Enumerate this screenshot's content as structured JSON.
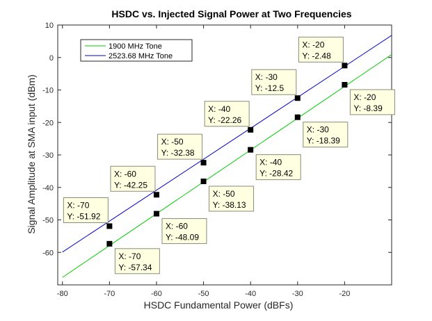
{
  "chart_data": {
    "type": "line",
    "title": "HSDC vs. Injected Signal Power at Two Frequencies",
    "xlabel": "HSDC Fundamental Power (dBFs)",
    "ylabel": "Signal Amplitude at SMA input (dBm)",
    "xlim": [
      -81,
      -10
    ],
    "ylim": [
      -70,
      10
    ],
    "xticks": [
      -80,
      -70,
      -60,
      -50,
      -40,
      -30,
      -20
    ],
    "yticks": [
      10,
      0,
      -10,
      -20,
      -30,
      -40,
      -50,
      -60
    ],
    "grid": false,
    "legend_position": "top-left",
    "series": [
      {
        "name": "1900 MHz Tone",
        "color": "#00cc00",
        "line_x": [
          -80,
          -10
        ],
        "line_y": [
          -67.7,
          0.9
        ],
        "datatips": [
          {
            "x": -70,
            "y": -57.34,
            "label_x": "X: -70",
            "label_y": "Y: -57.34"
          },
          {
            "x": -60,
            "y": -48.09,
            "label_x": "X: -60",
            "label_y": "Y: -48.09"
          },
          {
            "x": -50,
            "y": -38.13,
            "label_x": "X: -50",
            "label_y": "Y: -38.13"
          },
          {
            "x": -40,
            "y": -28.42,
            "label_x": "X: -40",
            "label_y": "Y: -28.42"
          },
          {
            "x": -30,
            "y": -18.39,
            "label_x": "X: -30",
            "label_y": "Y: -18.39"
          },
          {
            "x": -20,
            "y": -8.39,
            "label_x": "X: -20",
            "label_y": "Y: -8.39"
          }
        ]
      },
      {
        "name": "2523.68 MHz Tone",
        "color": "#0000cc",
        "line_x": [
          -80,
          -10
        ],
        "line_y": [
          -59.9,
          6.8
        ],
        "datatips": [
          {
            "x": -70,
            "y": -51.92,
            "label_x": "X: -70",
            "label_y": "Y: -51.92"
          },
          {
            "x": -60,
            "y": -42.25,
            "label_x": "X: -60",
            "label_y": "Y: -42.25"
          },
          {
            "x": -50,
            "y": -32.38,
            "label_x": "X: -50",
            "label_y": "Y: -32.38"
          },
          {
            "x": -40,
            "y": -22.26,
            "label_x": "X: -40",
            "label_y": "Y: -22.26"
          },
          {
            "x": -30,
            "y": -12.5,
            "label_x": "X: -30",
            "label_y": "Y: -12.5"
          },
          {
            "x": -20,
            "y": -2.48,
            "label_x": "X: -20",
            "label_y": "Y: -2.48"
          }
        ]
      }
    ]
  }
}
